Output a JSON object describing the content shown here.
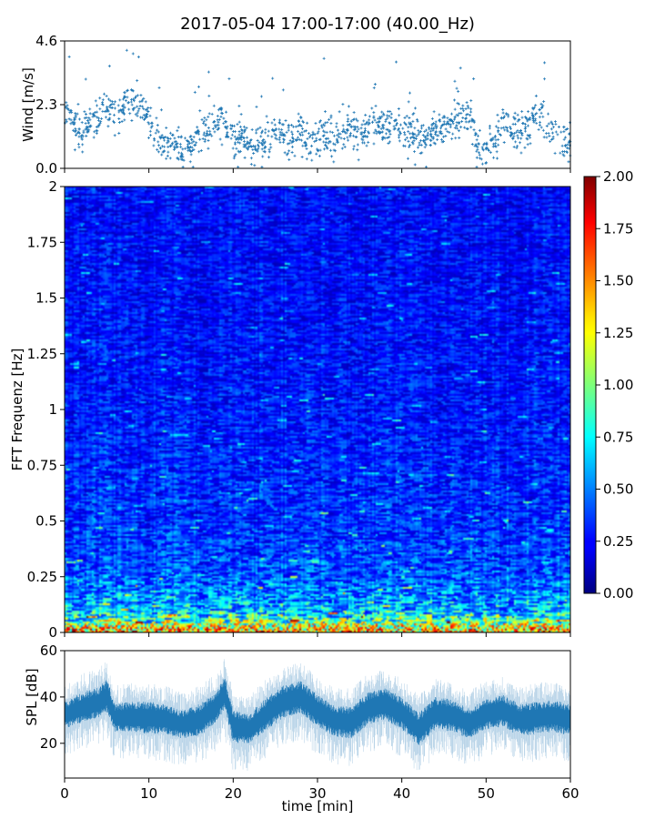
{
  "title": "2017-05-04 17:00-17:00 (40.00_Hz)",
  "colors": {
    "series": "#1f77b4",
    "axis": "#000000",
    "background": "#ffffff"
  },
  "chart_data": [
    {
      "type": "scatter",
      "name": "wind",
      "ylabel": "Wind [m/s]",
      "xlim": [
        0,
        60
      ],
      "ylim": [
        0,
        4.6
      ],
      "yticks": [
        0.0,
        2.3,
        4.6
      ],
      "ytick_labels": [
        "0.0",
        "2.3",
        "4.6"
      ],
      "xticks": [
        0,
        10,
        20,
        30,
        40,
        50,
        60
      ],
      "marker": "+",
      "trend": {
        "x": [
          0,
          1,
          2,
          3,
          4,
          5,
          6,
          7,
          8,
          9,
          10,
          11,
          12,
          13,
          14,
          15,
          16,
          17,
          18,
          19,
          20,
          21,
          22,
          23,
          24,
          25,
          26,
          27,
          28,
          29,
          30,
          31,
          32,
          33,
          34,
          35,
          36,
          37,
          38,
          39,
          40,
          41,
          42,
          43,
          44,
          45,
          46,
          47,
          48,
          49,
          50,
          51,
          52,
          53,
          54,
          55,
          56,
          57,
          58,
          59,
          60
        ],
        "y": [
          1.9,
          1.7,
          1.4,
          1.6,
          1.9,
          2.2,
          1.9,
          2.3,
          2.6,
          2.4,
          1.7,
          1.2,
          1.0,
          0.8,
          0.7,
          0.8,
          1.2,
          1.5,
          1.7,
          1.5,
          1.1,
          1.0,
          0.8,
          0.8,
          1.1,
          1.2,
          1.1,
          1.0,
          1.2,
          0.9,
          1.0,
          1.3,
          1.1,
          1.3,
          1.5,
          1.3,
          1.4,
          1.7,
          1.5,
          1.6,
          1.4,
          1.3,
          1.0,
          1.1,
          1.4,
          1.5,
          1.7,
          1.9,
          1.8,
          0.9,
          0.7,
          1.1,
          1.6,
          1.3,
          1.3,
          1.6,
          1.9,
          1.7,
          1.3,
          1.2,
          0.9
        ]
      }
    },
    {
      "type": "heatmap",
      "name": "spectrogram",
      "ylabel": "FFT Frequenz [Hz]",
      "xlim": [
        0,
        60
      ],
      "ylim": [
        0,
        2
      ],
      "yticks": [
        0,
        0.25,
        0.5,
        0.75,
        1,
        1.25,
        1.5,
        1.75,
        2
      ],
      "ytick_labels": [
        "0",
        "0.25",
        "0.5",
        "0.75",
        "1",
        "1.25",
        "1.5",
        "1.75",
        "2"
      ],
      "colormap": "jet",
      "colorbar": {
        "min": 0.0,
        "max": 2.0,
        "ticks": [
          "0.00",
          "0.25",
          "0.50",
          "0.75",
          "1.00",
          "1.25",
          "1.50",
          "1.75",
          "2.00"
        ]
      },
      "level_profile": {
        "freq_hz": [
          0.0,
          0.05,
          0.1,
          0.25,
          0.5,
          1.0,
          1.5,
          2.0
        ],
        "typical_value": [
          1.2,
          0.85,
          0.6,
          0.4,
          0.33,
          0.28,
          0.26,
          0.25
        ]
      }
    },
    {
      "type": "area",
      "name": "spl",
      "ylabel": "SPL [dB]",
      "xlabel": "time [min]",
      "xlim": [
        0,
        60
      ],
      "ylim": [
        5,
        60
      ],
      "yticks": [
        20,
        40,
        60
      ],
      "ytick_labels": [
        "20",
        "40",
        "60"
      ],
      "xticks": [
        0,
        10,
        20,
        30,
        40,
        50,
        60
      ],
      "xtick_labels": [
        "0",
        "10",
        "20",
        "30",
        "40",
        "50",
        "60"
      ],
      "envelope": {
        "x": [
          0,
          2,
          4,
          5,
          6,
          8,
          10,
          12,
          14,
          16,
          18,
          19,
          20,
          22,
          24,
          26,
          28,
          30,
          32,
          34,
          36,
          38,
          40,
          42,
          44,
          46,
          48,
          50,
          52,
          54,
          56,
          58,
          60
        ],
        "mid": [
          32,
          35,
          37,
          40,
          31,
          31,
          31,
          30,
          28,
          30,
          36,
          42,
          27,
          26,
          33,
          38,
          40,
          34,
          30,
          29,
          35,
          37,
          33,
          26,
          33,
          32,
          29,
          33,
          34,
          30,
          31,
          32,
          30
        ],
        "low": [
          26,
          29,
          31,
          33,
          25,
          25,
          24,
          24,
          22,
          23,
          29,
          34,
          20,
          20,
          26,
          31,
          33,
          27,
          23,
          22,
          28,
          30,
          26,
          19,
          26,
          25,
          22,
          26,
          27,
          23,
          24,
          25,
          23
        ],
        "high": [
          38,
          42,
          44,
          48,
          37,
          38,
          38,
          37,
          34,
          37,
          42,
          49,
          34,
          33,
          40,
          45,
          47,
          41,
          36,
          36,
          42,
          44,
          40,
          33,
          40,
          39,
          35,
          39,
          41,
          37,
          38,
          39,
          37
        ]
      }
    }
  ]
}
